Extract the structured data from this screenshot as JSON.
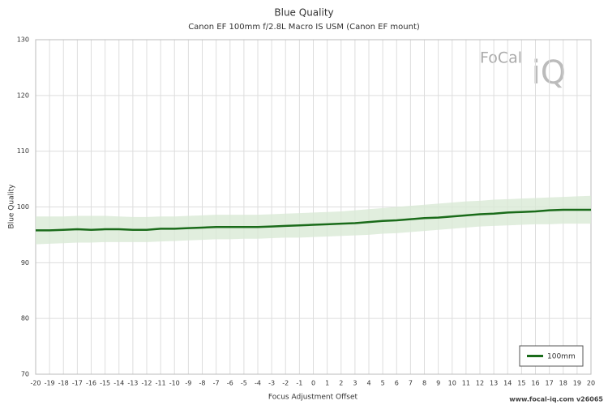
{
  "chart_data": {
    "type": "line",
    "title": "Blue Quality",
    "subtitle": "Canon EF 100mm f/2.8L Macro IS USM (Canon EF mount)",
    "x_label": "Focus Adjustment Offset",
    "y_label": "Blue Quality",
    "x": [
      -20,
      -19,
      -18,
      -17,
      -16,
      -15,
      -14,
      -13,
      -12,
      -11,
      -10,
      -9,
      -8,
      -7,
      -6,
      -5,
      -4,
      -3,
      -2,
      -1,
      0,
      1,
      2,
      3,
      4,
      5,
      6,
      7,
      8,
      9,
      10,
      11,
      12,
      13,
      14,
      15,
      16,
      17,
      18,
      19,
      20
    ],
    "series": [
      {
        "name": "100mm",
        "color": "#1a6b1a",
        "band_color": "#d9ead6",
        "values": [
          95.8,
          95.8,
          95.9,
          96.0,
          95.9,
          96.0,
          96.0,
          95.9,
          95.9,
          96.1,
          96.1,
          96.2,
          96.3,
          96.4,
          96.4,
          96.4,
          96.4,
          96.5,
          96.6,
          96.7,
          96.8,
          96.9,
          97.0,
          97.1,
          97.3,
          97.5,
          97.6,
          97.8,
          98.0,
          98.1,
          98.3,
          98.5,
          98.7,
          98.8,
          99.0,
          99.1,
          99.2,
          99.4,
          99.5,
          99.5,
          99.5
        ],
        "range_low": [
          93.3,
          93.4,
          93.5,
          93.6,
          93.6,
          93.7,
          93.7,
          93.7,
          93.7,
          93.8,
          93.9,
          94.0,
          94.1,
          94.2,
          94.2,
          94.3,
          94.3,
          94.4,
          94.5,
          94.5,
          94.6,
          94.7,
          94.8,
          94.9,
          95.0,
          95.2,
          95.3,
          95.5,
          95.7,
          95.9,
          96.1,
          96.3,
          96.5,
          96.6,
          96.7,
          96.8,
          96.9,
          96.9,
          97.0,
          97.0,
          97.0
        ],
        "range_high": [
          98.3,
          98.3,
          98.3,
          98.4,
          98.4,
          98.4,
          98.3,
          98.2,
          98.2,
          98.3,
          98.3,
          98.4,
          98.5,
          98.6,
          98.6,
          98.6,
          98.6,
          98.7,
          98.8,
          98.9,
          99.0,
          99.1,
          99.2,
          99.4,
          99.6,
          99.8,
          100.0,
          100.2,
          100.4,
          100.6,
          100.8,
          101.0,
          101.1,
          101.3,
          101.4,
          101.5,
          101.6,
          101.7,
          101.8,
          101.9,
          102.0
        ]
      }
    ],
    "xlim": [
      -20,
      20
    ],
    "xticks": [
      -20,
      -19,
      -18,
      -17,
      -16,
      -15,
      -14,
      -13,
      -12,
      -11,
      -10,
      -9,
      -8,
      -7,
      -6,
      -5,
      -4,
      -3,
      -2,
      -1,
      0,
      1,
      2,
      3,
      4,
      5,
      6,
      7,
      8,
      9,
      10,
      11,
      12,
      13,
      14,
      15,
      16,
      17,
      18,
      19,
      20
    ],
    "ylim": [
      70,
      130
    ],
    "yticks": [
      70,
      80,
      90,
      100,
      110,
      120,
      130
    ],
    "grid": true,
    "legend": "lower-right",
    "logo": {
      "top": "FoCal",
      "bottom": "iQ"
    },
    "footer": "www.focal-iq.com  v26065"
  }
}
